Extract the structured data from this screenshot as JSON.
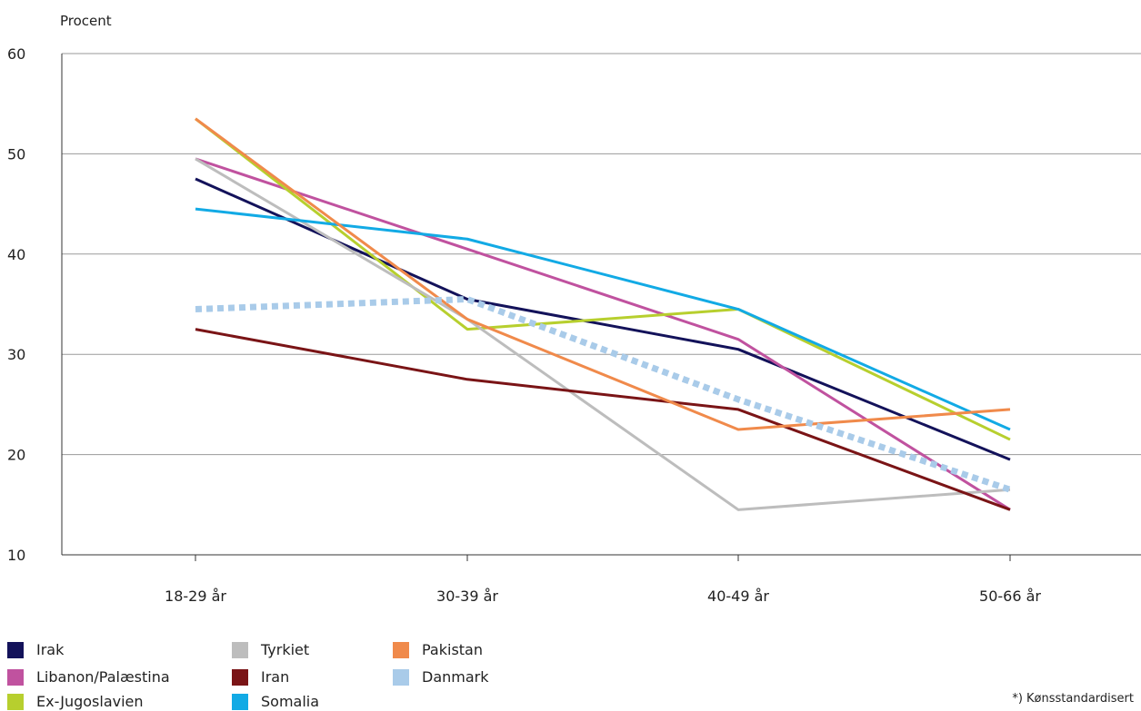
{
  "chart_data": {
    "type": "line",
    "ylabel": "Procent",
    "ylim": [
      10,
      60
    ],
    "yticks": [
      10,
      20,
      30,
      40,
      50,
      60
    ],
    "categories": [
      "18-29 år",
      "30-39 år",
      "40-49 år",
      "50-66 år"
    ],
    "grid": "horizontal",
    "legend_placement": "bottom-left",
    "series": [
      {
        "name": "Irak",
        "color": "#13125a",
        "values": [
          47.5,
          35.5,
          30.5,
          19.5
        ]
      },
      {
        "name": "Libanon/Palæstina",
        "color": "#c0529f",
        "values": [
          49.5,
          40.5,
          31.5,
          14.5
        ]
      },
      {
        "name": "Ex-Jugoslavien",
        "color": "#b7cf2e",
        "values": [
          53.5,
          32.5,
          34.5,
          21.5
        ]
      },
      {
        "name": "Tyrkiet",
        "color": "#bdbdbd",
        "values": [
          49.5,
          33.5,
          14.5,
          16.5
        ]
      },
      {
        "name": "Iran",
        "color": "#7a1416",
        "values": [
          32.5,
          27.5,
          24.5,
          14.5
        ]
      },
      {
        "name": "Somalia",
        "color": "#12aae5",
        "values": [
          44.5,
          41.5,
          34.5,
          22.5
        ]
      },
      {
        "name": "Pakistan",
        "color": "#f08a4b",
        "values": [
          53.5,
          33.5,
          22.5,
          24.5
        ]
      },
      {
        "name": "Danmark",
        "color": "#a9cbe9",
        "dashed": true,
        "values": [
          34.5,
          35.5,
          25.5,
          16.5
        ]
      }
    ],
    "footnote": "*)    Kønsstandardisert"
  }
}
